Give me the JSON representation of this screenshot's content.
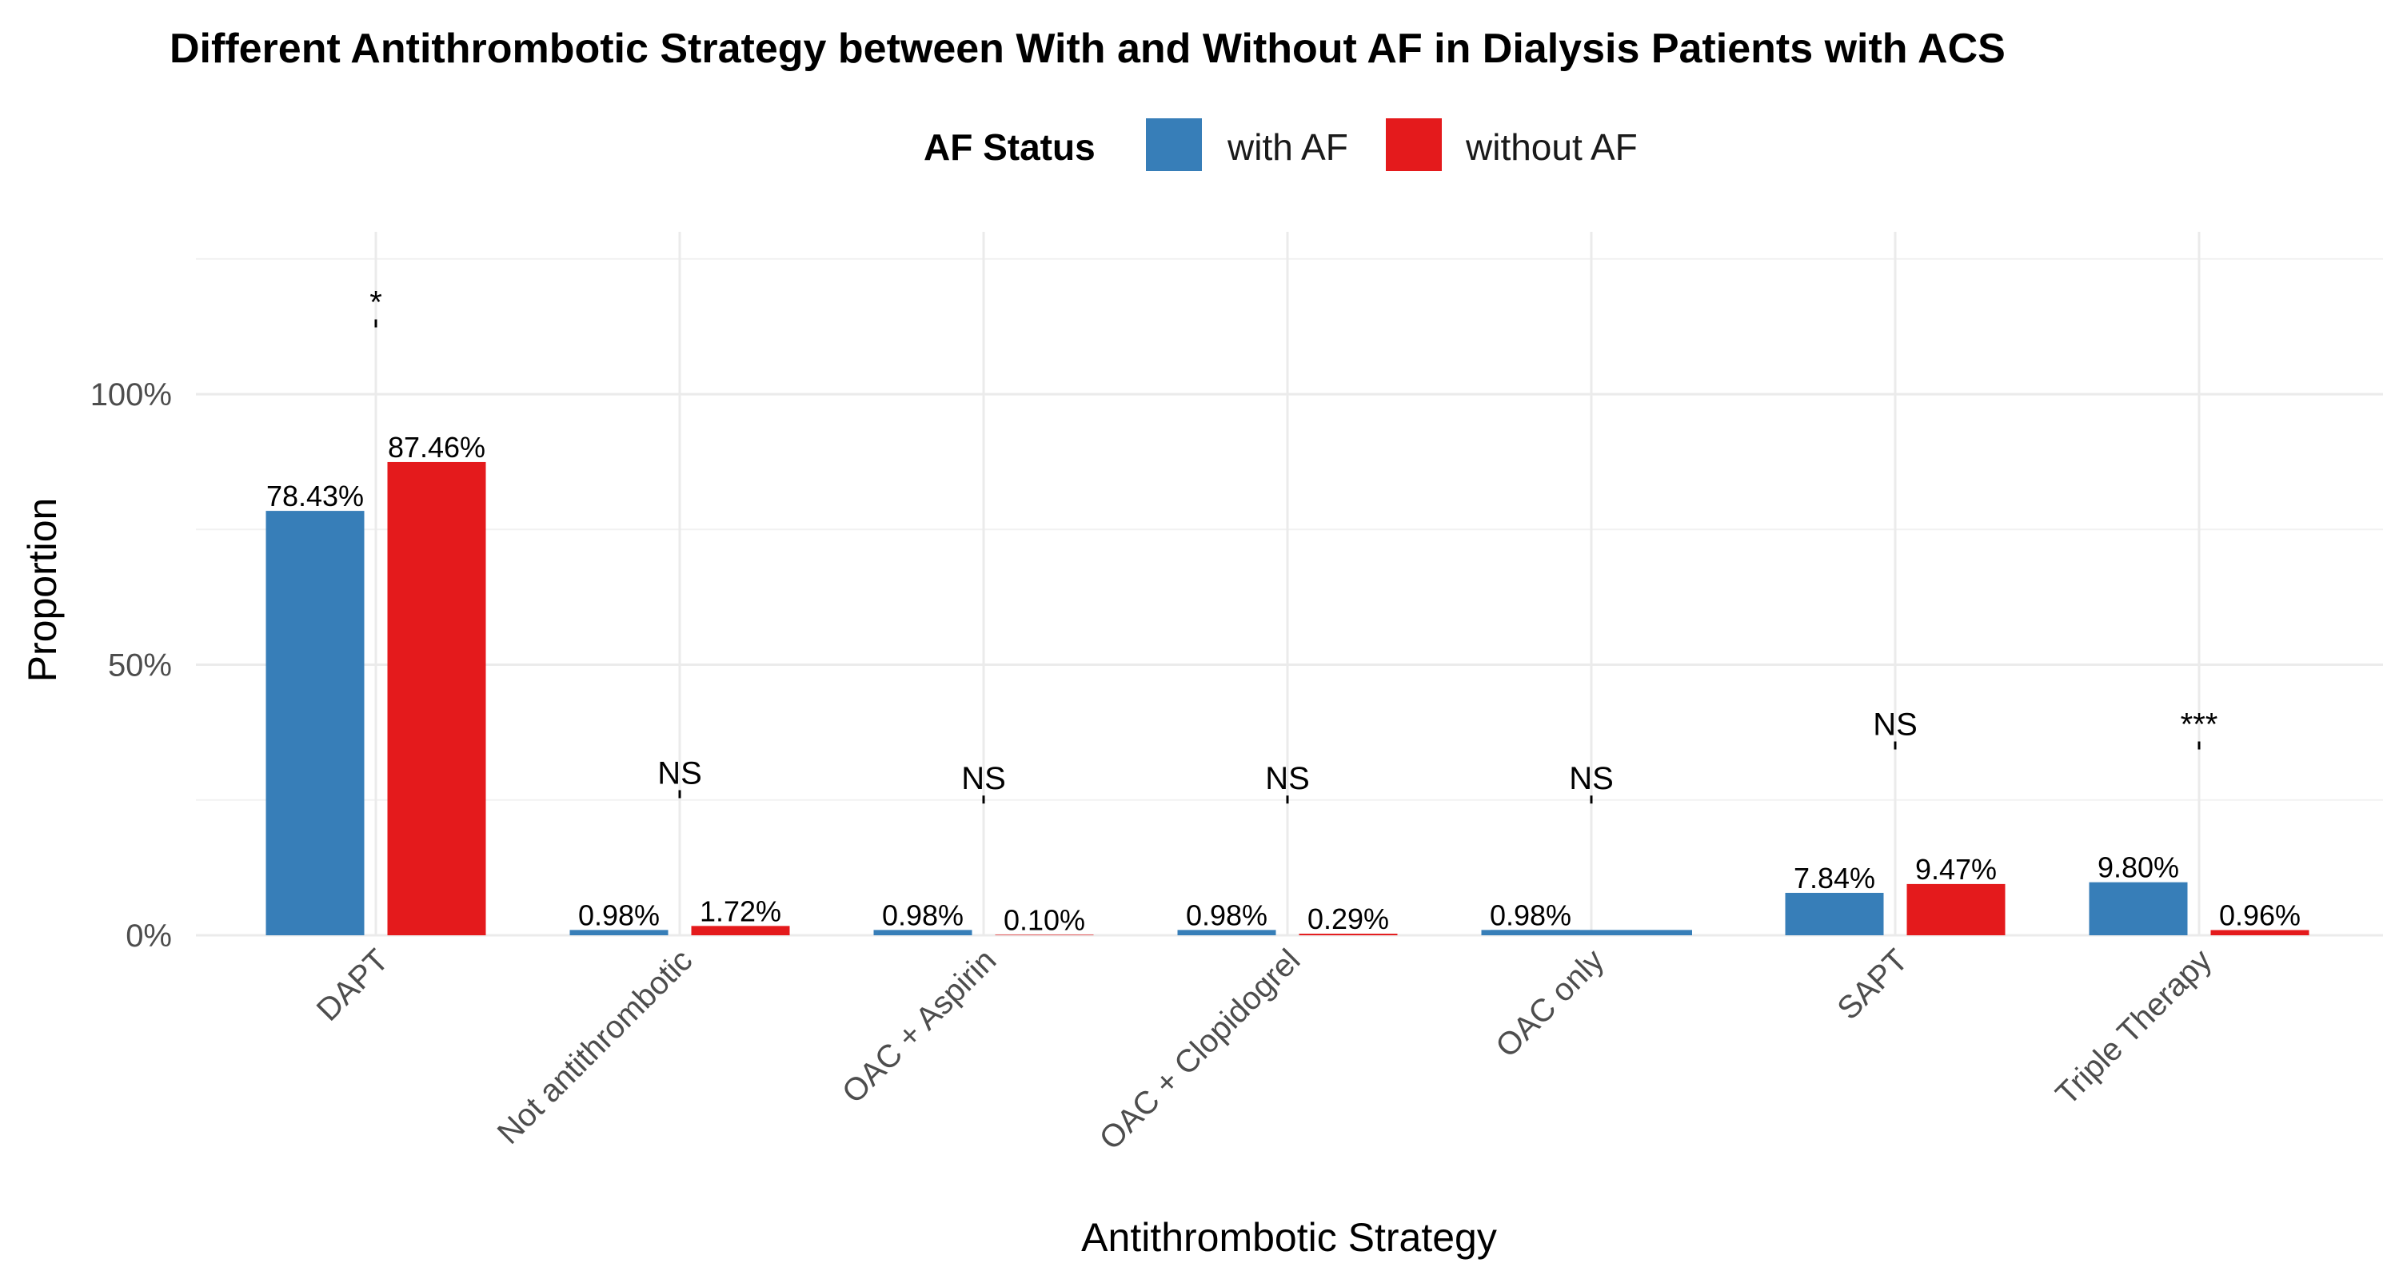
{
  "chart_data": {
    "type": "bar",
    "title": "Different Antithrombotic Strategy between With and Without AF in Dialysis Patients with ACS",
    "xlabel": "Antithrombotic Strategy",
    "ylabel": "Proportion",
    "ylim": [
      0,
      130
    ],
    "yticks": [
      0,
      50,
      100
    ],
    "ytick_labels": [
      "0%",
      "50%",
      "100%"
    ],
    "grid": true,
    "legend": {
      "title": "AF Status",
      "position": "top"
    },
    "categories": [
      "DAPT",
      "Not antithrombotic",
      "OAC + Aspirin",
      "OAC + Clopidogrel",
      "OAC only",
      "SAPT",
      "Triple Therapy"
    ],
    "series": [
      {
        "name": "with AF",
        "color": "#377EB8",
        "values": [
          78.43,
          0.98,
          0.98,
          0.98,
          0.98,
          7.84,
          9.8
        ],
        "labels": [
          "78.43%",
          "0.98%",
          "0.98%",
          "0.98%",
          "0.98%",
          "7.84%",
          "9.80%"
        ]
      },
      {
        "name": "without AF",
        "color": "#E41A1C",
        "values": [
          87.46,
          1.72,
          0.1,
          0.29,
          null,
          9.47,
          0.96
        ],
        "labels": [
          "87.46%",
          "1.72%",
          "0.10%",
          "0.29%",
          null,
          "9.47%",
          "0.96%"
        ]
      }
    ],
    "significance": [
      {
        "category": "DAPT",
        "label": "*",
        "y": 115
      },
      {
        "category": "Not antithrombotic",
        "label": "NS",
        "y": 28
      },
      {
        "category": "OAC + Aspirin",
        "label": "NS",
        "y": 27
      },
      {
        "category": "OAC + Clopidogrel",
        "label": "NS",
        "y": 27
      },
      {
        "category": "OAC only",
        "label": "NS",
        "y": 27
      },
      {
        "category": "SAPT",
        "label": "NS",
        "y": 37
      },
      {
        "category": "Triple Therapy",
        "label": "***",
        "y": 37
      }
    ]
  }
}
